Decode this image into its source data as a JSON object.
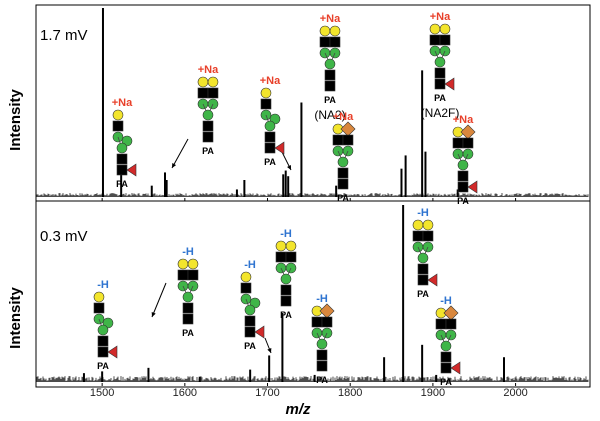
{
  "chart_data": [
    {
      "type": "line",
      "panel_label": "1.7 mV",
      "ylabel": "Intensity",
      "xlim": [
        1420,
        2090
      ],
      "ylim": [
        0,
        100
      ],
      "x_ticks": [
        1500,
        1600,
        1700,
        1800,
        1900,
        2000
      ],
      "peaks": [
        {
          "mz": 1501,
          "intensity": 100
        },
        {
          "mz": 1523,
          "intensity": 16
        },
        {
          "mz": 1560,
          "intensity": 6
        },
        {
          "mz": 1576,
          "intensity": 13
        },
        {
          "mz": 1578,
          "intensity": 9
        },
        {
          "mz": 1663,
          "intensity": 4
        },
        {
          "mz": 1672,
          "intensity": 9
        },
        {
          "mz": 1719,
          "intensity": 12
        },
        {
          "mz": 1722,
          "intensity": 14
        },
        {
          "mz": 1725,
          "intensity": 11
        },
        {
          "mz": 1741,
          "intensity": 50
        },
        {
          "mz": 1783,
          "intensity": 6
        },
        {
          "mz": 1862,
          "intensity": 15
        },
        {
          "mz": 1867,
          "intensity": 22
        },
        {
          "mz": 1887,
          "intensity": 67
        },
        {
          "mz": 1891,
          "intensity": 24
        },
        {
          "mz": 1930,
          "intensity": 4
        }
      ],
      "annotations": [
        {
          "id": "g1",
          "ion": "+Na",
          "label": "PA",
          "glycan": "biantennary-single-arm-fucosylated"
        },
        {
          "id": "g2",
          "ion": "+Na",
          "label": "PA",
          "glycan": "biantennary-galactosylated"
        },
        {
          "id": "g3",
          "ion": "+Na",
          "label": "PA",
          "glycan": "biantennary-single-arm-fucosylated"
        },
        {
          "id": "g4",
          "ion": "+Na",
          "label": "PA",
          "name": "(NA2)",
          "glycan": "NA2"
        },
        {
          "id": "g5",
          "ion": "+Na",
          "label": "PA",
          "glycan": "sialylated-single-arm"
        },
        {
          "id": "g6",
          "ion": "+Na",
          "label": "PA",
          "name": "(NA2F)",
          "glycan": "NA2F"
        },
        {
          "id": "g7",
          "ion": "+Na",
          "label": "PA",
          "glycan": "sialylated-fucosylated"
        }
      ]
    },
    {
      "type": "line",
      "panel_label": "0.3 mV",
      "ylabel": "Intensity",
      "xlabel": "m/z",
      "xlim": [
        1420,
        2090
      ],
      "ylim": [
        0,
        100
      ],
      "x_ticks": [
        1500,
        1600,
        1700,
        1800,
        1900,
        2000
      ],
      "peaks": [
        {
          "mz": 1478,
          "intensity": 5
        },
        {
          "mz": 1500,
          "intensity": 6
        },
        {
          "mz": 1556,
          "intensity": 8
        },
        {
          "mz": 1618,
          "intensity": 3
        },
        {
          "mz": 1679,
          "intensity": 7
        },
        {
          "mz": 1702,
          "intensity": 15
        },
        {
          "mz": 1718,
          "intensity": 39
        },
        {
          "mz": 1757,
          "intensity": 4
        },
        {
          "mz": 1841,
          "intensity": 14
        },
        {
          "mz": 1864,
          "intensity": 100
        },
        {
          "mz": 1887,
          "intensity": 21
        },
        {
          "mz": 1904,
          "intensity": 4
        },
        {
          "mz": 1986,
          "intensity": 14
        }
      ],
      "annotations": [
        {
          "id": "h1",
          "ion": "-H",
          "label": "PA",
          "glycan": "biantennary-single-arm-fucosylated"
        },
        {
          "id": "h2",
          "ion": "-H",
          "label": "PA",
          "glycan": "biantennary-galactosylated"
        },
        {
          "id": "h3",
          "ion": "-H",
          "label": "PA",
          "glycan": "biantennary-single-arm-fucosylated"
        },
        {
          "id": "h4",
          "ion": "-H",
          "label": "PA",
          "glycan": "NA2"
        },
        {
          "id": "h5",
          "ion": "-H",
          "label": "PA",
          "glycan": "sialylated-single-arm"
        },
        {
          "id": "h6",
          "ion": "-H",
          "label": "PA",
          "glycan": "NA2F"
        },
        {
          "id": "h7",
          "ion": "-H",
          "label": "PA",
          "glycan": "sialylated-fucosylated"
        }
      ]
    }
  ],
  "colors": {
    "na_label": "#e8402a",
    "h_label": "#2f74d0",
    "galactose": "#f3e52c",
    "mannose": "#3fb548",
    "glcnac": "#5b63d2",
    "fucose": "#d22a2a",
    "sialic": "#d9873d"
  }
}
